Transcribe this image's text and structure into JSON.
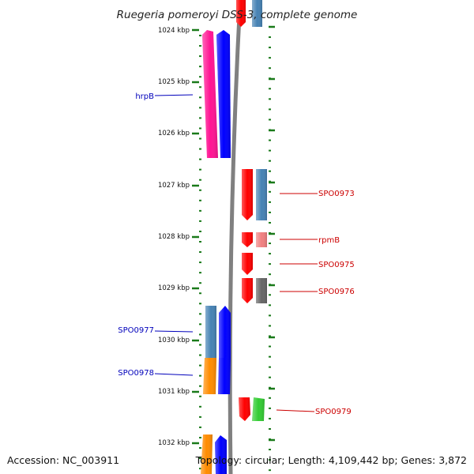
{
  "title": "Ruegeria pomeroyi DSS-3, complete genome",
  "footer": {
    "accession": "Accession: NC_003911",
    "summary": "Topology: circular; Length: 4,109,442 bp; Genes: 3,872"
  },
  "ticks": [
    {
      "label": "1024 kbp"
    },
    {
      "label": "1025 kbp"
    },
    {
      "label": "1026 kbp"
    },
    {
      "label": "1027 kbp"
    },
    {
      "label": "1028 kbp"
    },
    {
      "label": "1029 kbp"
    },
    {
      "label": "1030 kbp"
    },
    {
      "label": "1031 kbp"
    },
    {
      "label": "1032 kbp"
    }
  ],
  "gene_labels": [
    {
      "label": "hrpB",
      "strand": "reverse"
    },
    {
      "label": "SPO0977",
      "strand": "reverse"
    },
    {
      "label": "SPO0978",
      "strand": "reverse"
    },
    {
      "label": "SPO0973",
      "strand": "forward"
    },
    {
      "label": "rpmB",
      "strand": "forward"
    },
    {
      "label": "SPO0975",
      "strand": "forward"
    },
    {
      "label": "SPO0976",
      "strand": "forward"
    },
    {
      "label": "SPO0979",
      "strand": "forward"
    }
  ],
  "colors": {
    "backbone": "#808080",
    "ticks": "#1a7a1a",
    "forward_label": "#cc0000",
    "reverse_label": "#0000bb",
    "cds_forward": "#ff0000",
    "cds_reverse": "#0000ff",
    "gene_hrpB": "#ff1493",
    "gene_blue": "#4682b4",
    "gene_orange": "#ff8c00",
    "gene_pink": "#f08080",
    "gene_gray": "#666666",
    "gene_green": "#33cc33"
  }
}
